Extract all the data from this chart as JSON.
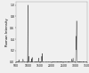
{
  "title": "",
  "ylabel": "Raman Intensity",
  "xlabel": "",
  "xlim": [
    500,
    3500
  ],
  "ylim": [
    0,
    1.05
  ],
  "ytick_vals": [
    0.0,
    0.2,
    0.4,
    0.6,
    0.8,
    1.0
  ],
  "xtick_vals": [
    500,
    1000,
    1500,
    2000,
    2500,
    3000,
    3500
  ],
  "xtick_labels": [
    "500",
    "1000",
    "1500",
    "2000",
    "2500",
    "3000",
    "3500"
  ],
  "line_color": "#444444",
  "background_color": "#f0f0f0",
  "peak_positions": [
    1001,
    3054,
    3028,
    1602,
    1583,
    1450,
    1181,
    1156,
    1031,
    795,
    620,
    2904,
    2852
  ],
  "peak_heights": [
    1.0,
    0.72,
    0.45,
    0.15,
    0.1,
    0.07,
    0.08,
    0.06,
    0.1,
    0.05,
    0.04,
    0.07,
    0.05
  ],
  "peak_widths": [
    7,
    11,
    9,
    6,
    6,
    7,
    5,
    5,
    5,
    7,
    7,
    9,
    9
  ]
}
